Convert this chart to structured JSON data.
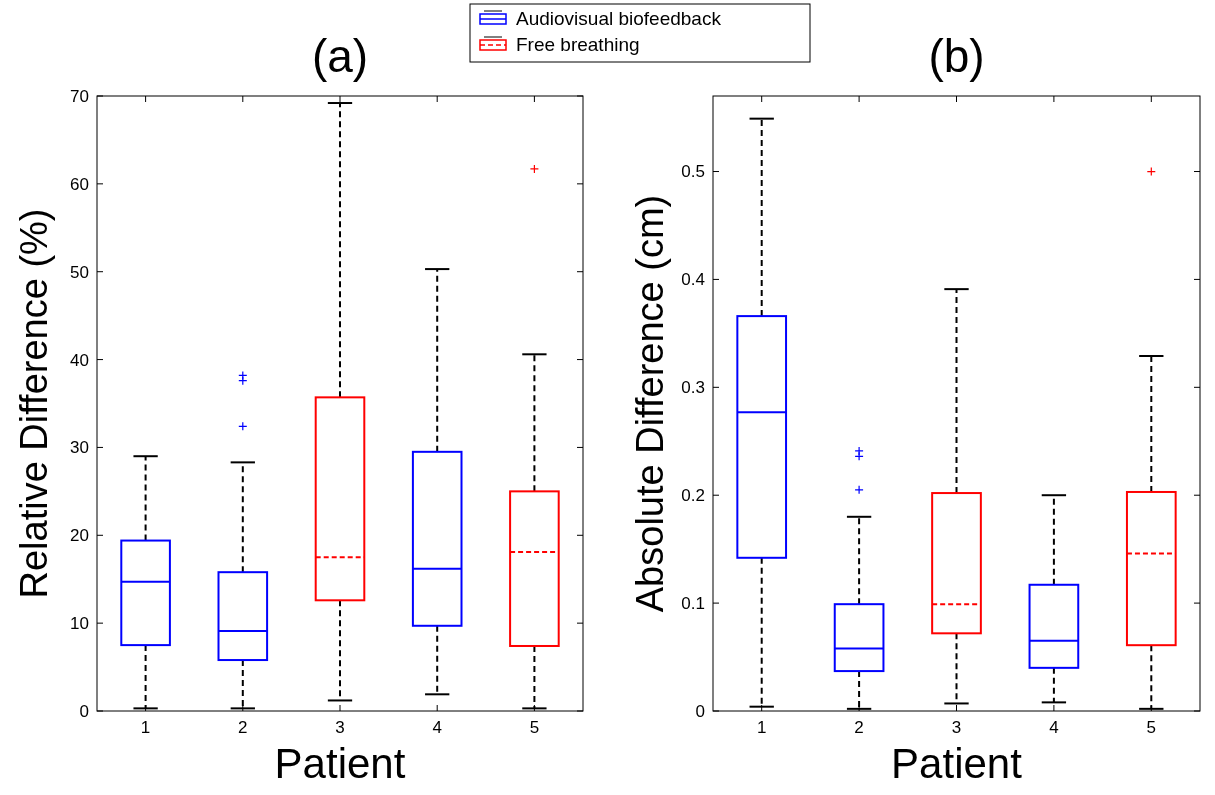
{
  "chart_data": [
    {
      "type": "box",
      "title": "(a)",
      "xlabel": "Patient",
      "ylabel": "Relative Difference (%)",
      "categories": [
        "1",
        "2",
        "3",
        "4",
        "5"
      ],
      "ylim": [
        0,
        70
      ],
      "yticks": [
        0,
        10,
        20,
        30,
        40,
        50,
        60,
        70
      ],
      "grid": false,
      "legend": "top right",
      "marker": "cross",
      "series": [
        {
          "name": "Audiovisual biofeedback",
          "color": "#0000ff",
          "line_style": "solid",
          "boxes": [
            {
              "low": 0.3,
              "q1": 7.5,
              "median": 14.7,
              "q3": 19.4,
              "high": 29.0
            },
            {
              "low": 0.3,
              "q1": 5.8,
              "median": 9.1,
              "q3": 15.8,
              "high": 28.3,
              "outliers": [
                38.2,
                37.6,
                32.4
              ]
            },
            null,
            {
              "low": 1.9,
              "q1": 9.7,
              "median": 16.2,
              "q3": 29.5,
              "high": 50.3
            },
            null
          ]
        },
        {
          "name": "Free breathing",
          "color": "#ff0000",
          "line_style": "dashed",
          "boxes": [
            null,
            null,
            {
              "low": 1.2,
              "q1": 12.6,
              "median": 17.5,
              "q3": 35.7,
              "high": 69.2
            },
            null,
            {
              "low": 0.3,
              "q1": 7.4,
              "median": 18.1,
              "q3": 25.0,
              "high": 40.6,
              "outliers": [
                61.7
              ]
            }
          ]
        }
      ]
    },
    {
      "type": "box",
      "title": "(b)",
      "xlabel": "Patient",
      "ylabel": "Absolute Difference (cm)",
      "categories": [
        "1",
        "2",
        "3",
        "4",
        "5"
      ],
      "ylim": [
        0,
        0.57
      ],
      "yticks": [
        0,
        0.1,
        0.2,
        0.3,
        0.4,
        0.5
      ],
      "grid": false,
      "marker": "cross",
      "series": [
        {
          "color": "#0000ff",
          "line_style": "solid",
          "boxes": [
            {
              "low": 0.004,
              "q1": 0.142,
              "median": 0.277,
              "q3": 0.366,
              "high": 0.549
            },
            {
              "low": 0.002,
              "q1": 0.037,
              "median": 0.058,
              "q3": 0.099,
              "high": 0.18,
              "outliers": [
                0.241,
                0.236,
                0.205
              ]
            },
            null,
            {
              "low": 0.008,
              "q1": 0.04,
              "median": 0.065,
              "q3": 0.117,
              "high": 0.2
            },
            null
          ]
        },
        {
          "color": "#ff0000",
          "line_style": "dashed",
          "boxes": [
            null,
            null,
            {
              "low": 0.007,
              "q1": 0.072,
              "median": 0.099,
              "q3": 0.202,
              "high": 0.391
            },
            null,
            {
              "low": 0.002,
              "q1": 0.061,
              "median": 0.146,
              "q3": 0.203,
              "high": 0.329,
              "outliers": [
                0.5
              ]
            }
          ]
        }
      ]
    }
  ]
}
